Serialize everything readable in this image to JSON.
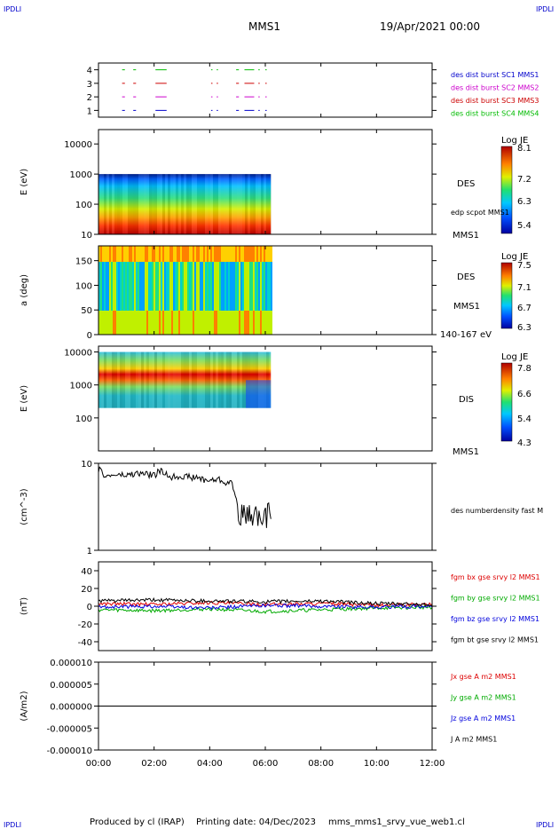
{
  "header": {
    "corner_tl": "IPDLI",
    "corner_tr": "IPDLI",
    "corner_bl": "IPDLI",
    "corner_br": "IPDLI",
    "spacecraft": "MMS1",
    "date": "19/Apr/2021 00:00"
  },
  "footer": {
    "produced": "Produced by cl (IRAP)",
    "printing": "Printing date: 04/Dec/2023",
    "filename": "mms_mms1_srvy_vue_web1.cl"
  },
  "colors": {
    "mms1": "#0000cc",
    "mms2": "#cc00cc",
    "mms3": "#cc0000",
    "mms4": "#00bb00",
    "bx": "#dd0000",
    "by": "#00aa00",
    "bz": "#0000dd",
    "bt": "#000000"
  },
  "chart_data": {
    "x_axis": {
      "ticks": [
        "00:00",
        "02:00",
        "04:00",
        "06:00",
        "08:00",
        "10:00",
        "12:00"
      ],
      "range_hours": [
        0,
        12
      ]
    },
    "panels": [
      {
        "id": "burst",
        "type": "timeline",
        "ylim": [
          0.5,
          4.5
        ],
        "yticks": [
          "1",
          "2",
          "3",
          "4"
        ],
        "legend": [
          {
            "name": "des dist burst SC1 MMS1",
            "color": "#0000cc"
          },
          {
            "name": "des dist burst SC2 MMS2",
            "color": "#cc00cc"
          },
          {
            "name": "des dist burst SC3 MMS3",
            "color": "#cc0000"
          },
          {
            "name": "des dist burst SC4 MMS4",
            "color": "#00bb00"
          }
        ],
        "intervals_hours": [
          [
            0.85,
            0.95
          ],
          [
            1.25,
            1.35
          ],
          [
            2.05,
            2.45
          ],
          [
            4.05,
            4.1
          ],
          [
            4.25,
            4.3
          ],
          [
            4.95,
            5.05
          ],
          [
            5.25,
            5.6
          ],
          [
            5.75,
            5.8
          ],
          [
            6.0,
            6.05
          ]
        ]
      },
      {
        "id": "des-energy",
        "type": "heatmap",
        "ylabel": "E (eV)",
        "scale": "log",
        "ylim": [
          10,
          30000
        ],
        "yticks": [
          "10",
          "100",
          "1000",
          "10000"
        ],
        "data_end_hours": 6.2,
        "colorbar": {
          "title": "Log JE",
          "ticks": [
            "8.1",
            "7.2",
            "6.3",
            "5.4"
          ],
          "range": [
            5.4,
            8.1
          ]
        },
        "labels": [
          "DES",
          "edp scpot MMS1",
          "MMS1"
        ]
      },
      {
        "id": "des-pitch",
        "type": "heatmap",
        "ylabel": "a (deg)",
        "ylim": [
          0,
          180
        ],
        "yticks": [
          "0",
          "50",
          "100",
          "150"
        ],
        "data_end_hours": 6.2,
        "colorbar": {
          "title": "Log JE",
          "ticks": [
            "7.5",
            "7.1",
            "6.7",
            "6.3"
          ],
          "range": [
            6.3,
            7.5
          ]
        },
        "labels": [
          "DES",
          "MMS1",
          "140-167 eV"
        ]
      },
      {
        "id": "dis-energy",
        "type": "heatmap",
        "ylabel": "E (eV)",
        "scale": "log",
        "ylim": [
          10,
          15000
        ],
        "yticks": [
          "100",
          "1000",
          "10000"
        ],
        "data_end_hours": 6.2,
        "colorbar": {
          "title": "Log JE",
          "ticks": [
            "7.8",
            "6.6",
            "5.4",
            "4.3"
          ],
          "range": [
            4.3,
            7.8
          ]
        },
        "labels": [
          "DIS",
          "MMS1"
        ]
      },
      {
        "id": "density",
        "type": "line",
        "ylabel": "(cm^-3)",
        "scale": "log",
        "ylim": [
          1,
          10
        ],
        "yticks": [
          "1",
          "10"
        ],
        "legend": [
          {
            "name": "des numberdensity fast M",
            "color": "#000000"
          }
        ],
        "series": [
          {
            "name": "des numberdensity fast M",
            "x": [
              0.0,
              0.3,
              0.6,
              1.0,
              1.3,
              1.6,
              2.0,
              2.2,
              2.6,
              3.0,
              3.3,
              3.6,
              4.0,
              4.3,
              4.6,
              4.8,
              5.0,
              5.1,
              5.3,
              5.6,
              5.9,
              6.2
            ],
            "y": [
              8.5,
              7.0,
              7.4,
              7.2,
              7.6,
              7.6,
              7.3,
              8.2,
              7.0,
              7.2,
              6.9,
              6.8,
              6.3,
              6.6,
              6.0,
              5.9,
              3.2,
              2.7,
              2.5,
              2.8,
              2.1,
              3.0
            ]
          }
        ]
      },
      {
        "id": "fgm",
        "type": "line",
        "ylabel": "(nT)",
        "ylim": [
          -50,
          50
        ],
        "yticks": [
          "-40",
          "-20",
          "0",
          "20",
          "40"
        ],
        "legend": [
          {
            "name": "fgm bx gse srvy l2 MMS1",
            "color": "#dd0000"
          },
          {
            "name": "fgm by gse srvy l2 MMS1",
            "color": "#00aa00"
          },
          {
            "name": "fgm bz gse srvy l2 MMS1",
            "color": "#0000dd"
          },
          {
            "name": "fgm bt gse srvy l2 MMS1",
            "color": "#000000"
          }
        ],
        "series": [
          {
            "name": "fgm bx gse srvy l2 MMS1",
            "x": [
              0,
              2,
              4,
              6,
              8,
              10,
              12
            ],
            "y": [
              3,
              2,
              4,
              2,
              3,
              1,
              2
            ]
          },
          {
            "name": "fgm by gse srvy l2 MMS1",
            "x": [
              0,
              2,
              4,
              6,
              8,
              10,
              12
            ],
            "y": [
              -4,
              -5,
              -3,
              -6,
              -4,
              -2,
              -1
            ]
          },
          {
            "name": "fgm bz gse srvy l2 MMS1",
            "x": [
              0,
              2,
              4,
              6,
              8,
              10,
              12
            ],
            "y": [
              -1,
              0,
              -2,
              1,
              0,
              -1,
              0
            ]
          },
          {
            "name": "fgm bt gse srvy l2 MMS1",
            "x": [
              0,
              2,
              4,
              6,
              8,
              10,
              12
            ],
            "y": [
              6,
              7,
              6,
              5,
              6,
              3,
              2
            ]
          }
        ]
      },
      {
        "id": "current",
        "type": "line",
        "ylabel": "(A/m2)",
        "ylim": [
          -1e-05,
          1e-05
        ],
        "yticks": [
          "-0.000010",
          "-0.000005",
          "0.000000",
          "0.000005",
          "0.000010"
        ],
        "legend": [
          {
            "name": "Jx gse A m2 MMS1",
            "color": "#dd0000"
          },
          {
            "name": "Jy gse A m2 MMS1",
            "color": "#00aa00"
          },
          {
            "name": "Jz gse A m2 MMS1",
            "color": "#0000dd"
          },
          {
            "name": "J A m2 MMS1",
            "color": "#000000"
          }
        ],
        "series": [
          {
            "name": "J A m2 MMS1",
            "x": [
              0,
              12
            ],
            "y": [
              0,
              0
            ]
          }
        ]
      }
    ]
  }
}
